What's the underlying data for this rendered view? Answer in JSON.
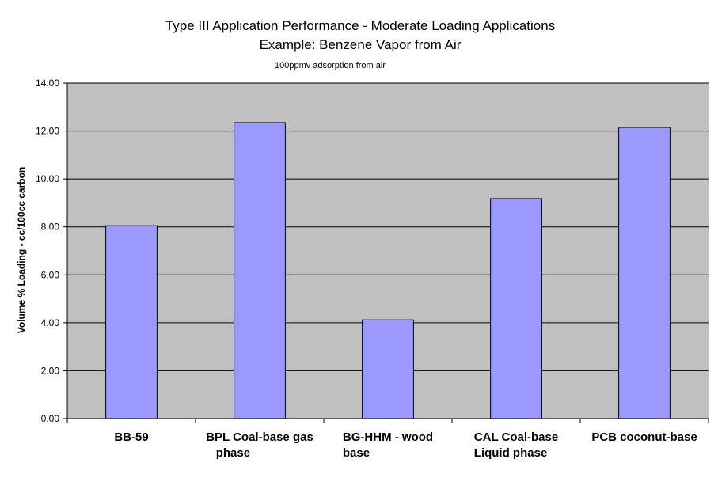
{
  "chart_data": {
    "type": "bar",
    "title_line1": "Type III Application Performance - Moderate Loading Applications",
    "title_line2": "Example:  Benzene Vapor from Air",
    "subtitle": "100ppmv adsorption from air",
    "ylabel": "Volume % Loading - cc/100cc carbon",
    "xlabel": "",
    "ylim": [
      0,
      14
    ],
    "ytick_values": [
      0,
      2,
      4,
      6,
      8,
      10,
      12,
      14
    ],
    "ytick_labels": [
      "0.00",
      "2.00",
      "4.00",
      "6.00",
      "8.00",
      "10.00",
      "12.00",
      "14.00"
    ],
    "categories": [
      [
        "BB-59"
      ],
      [
        "BPL Coal-base gas",
        "   phase"
      ],
      [
        "BG-HHM - wood",
        "base"
      ],
      [
        "CAL Coal-base",
        "Liquid phase"
      ],
      [
        "PCB coconut-base"
      ]
    ],
    "values": [
      8.05,
      12.35,
      4.12,
      9.18,
      12.15
    ],
    "grid": true,
    "legend": "none",
    "colors": {
      "plot_bg": "#c0c0c0",
      "bar_fill": "#9999ff",
      "bar_stroke": "#000000",
      "grid": "#000000"
    }
  }
}
